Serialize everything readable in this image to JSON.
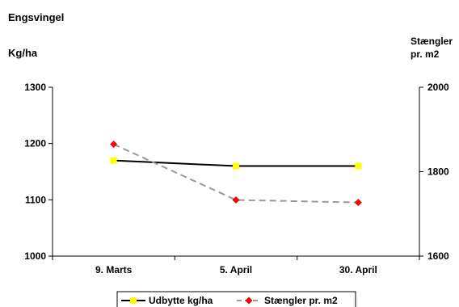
{
  "chart_data": {
    "type": "line",
    "title": "Engsvingel",
    "ylabel_left": "Kg/ha",
    "ylabel_right_line1": "Stængler",
    "ylabel_right_line2": "pr. m2",
    "categories": [
      "9. Marts",
      "5. April",
      "30. April"
    ],
    "y_left": {
      "min": 1000,
      "max": 1300,
      "ticks": [
        1000,
        1100,
        1200,
        1300
      ]
    },
    "y_right": {
      "min": 1600,
      "max": 2000,
      "ticks": [
        1600,
        1800,
        2000
      ]
    },
    "grid": false,
    "legend_position": "bottom",
    "series": [
      {
        "name": "Udbytte kg/ha",
        "axis": "left",
        "values": [
          1170,
          1160,
          1160
        ],
        "line_color": "#000000",
        "marker_color": "#ffff00",
        "marker": "square",
        "dash": "solid"
      },
      {
        "name": "Stængler pr. m2",
        "axis": "right",
        "values": [
          1865,
          1733,
          1727
        ],
        "line_color": "#999999",
        "marker_color": "#ff0000",
        "marker": "diamond",
        "dash": "dashed"
      }
    ]
  }
}
